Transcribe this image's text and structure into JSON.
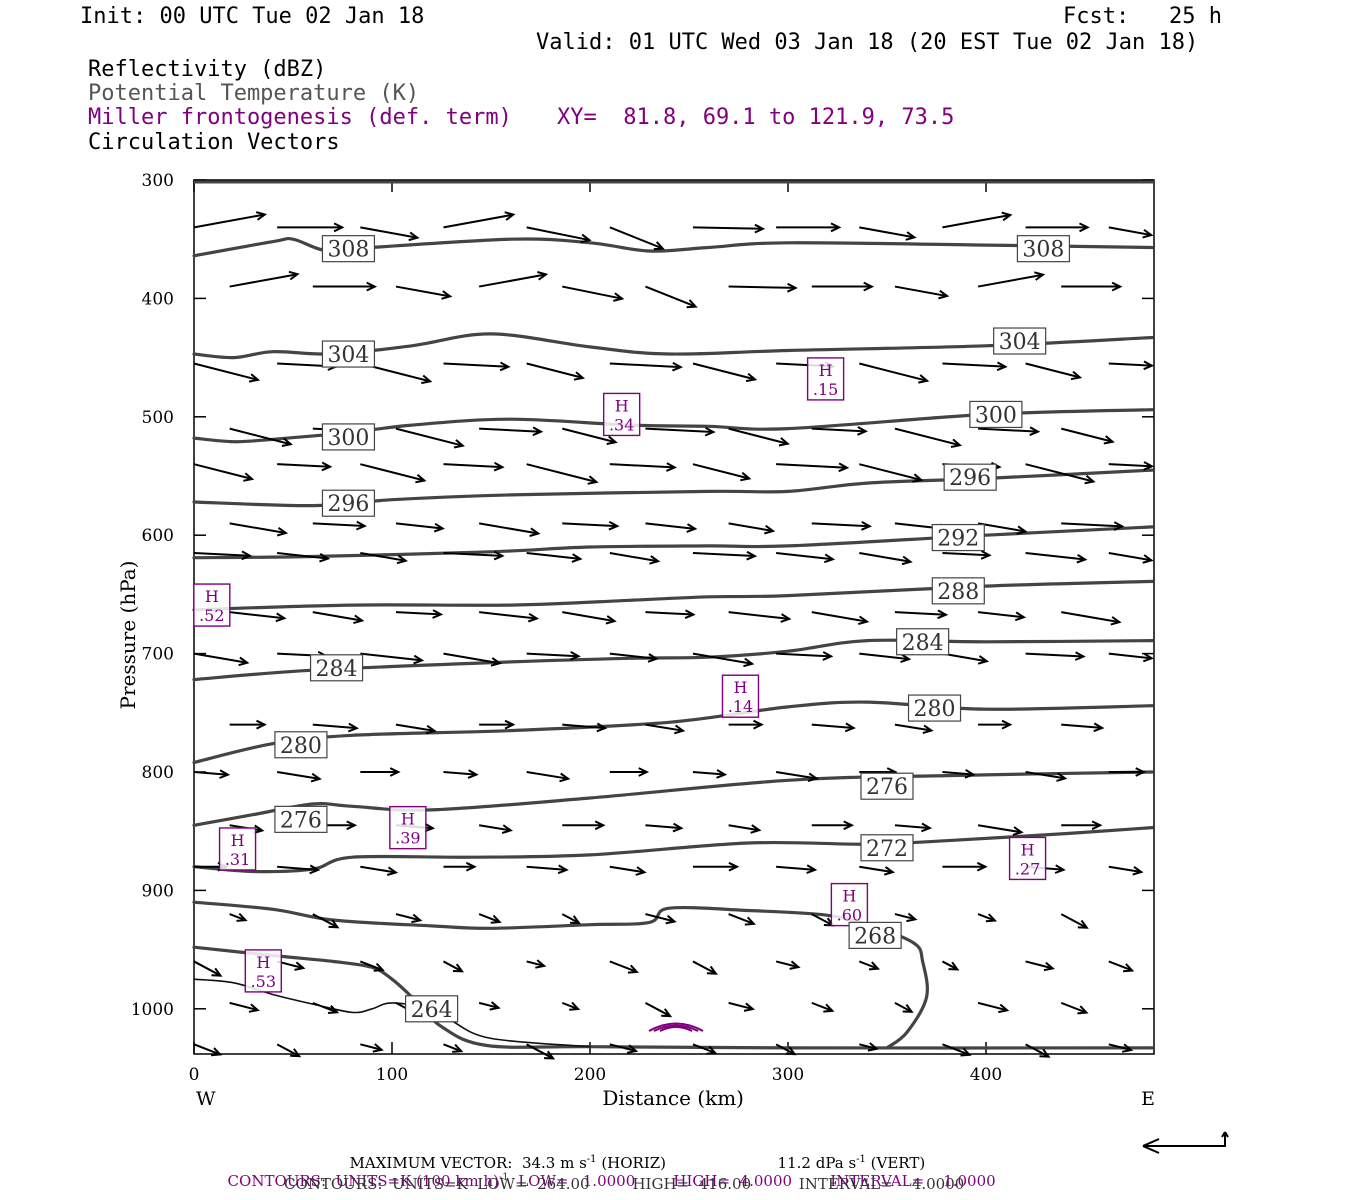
{
  "header": {
    "init": "Init: 00 UTC Tue 02 Jan 18",
    "fcst": "Fcst:   25 h",
    "valid": "Valid: 01 UTC Wed 03 Jan 18 (20 EST Tue 02 Jan 18)"
  },
  "legend": {
    "line1": "Reflectivity (dBZ)",
    "line2": "Potential Temperature (K)",
    "line3": "Miller frontogenesis (def. term)",
    "xy": "XY=  81.8, 69.1 to 121.9, 73.5",
    "line4": "Circulation Vectors"
  },
  "footer": {
    "max_vector_label": "MAXIMUM VECTOR:",
    "horiz_value": "34.3 m s",
    "horiz_exp": "-1",
    "horiz_suffix": " (HORIZ)",
    "vert_value": "11.2 dPa s",
    "vert_exp": "-1",
    "vert_suffix": " (VERT)",
    "contours_purple_a": "CONTOURS:  UNITS=K (100 km h)",
    "contours_purple_exp": "-1",
    "contours_purple_b": "  LOW=   1.0000        HIGH=  4.0000        INTERVAL=    1.0000",
    "contours_gray": "CONTOURS:  UNITS=K  LOW=  264.00         HIGH=  416.00          INTERVAL=    4.0000"
  },
  "colors": {
    "theta": "#444444",
    "fronto": "#800080",
    "vector": "#000000"
  },
  "chart_data": {
    "type": "cross-section",
    "xlabel": "Distance (km)",
    "ylabel": "Pressure (hPa)",
    "x_ticks": [
      0,
      100,
      200,
      300,
      400
    ],
    "y_ticks": [
      300,
      400,
      500,
      600,
      700,
      800,
      900,
      1000
    ],
    "xlim": [
      0,
      484
    ],
    "ylim": [
      1038,
      300
    ],
    "y_scale": "linear-pressure-inverted",
    "x_end_labels": {
      "left": "W",
      "right": "E"
    },
    "theta_contours": [
      {
        "label": "308",
        "points": [
          [
            0,
            364
          ],
          [
            40,
            352
          ],
          [
            50,
            350
          ],
          [
            65,
            359
          ],
          [
            80,
            358
          ],
          [
            160,
            350
          ],
          [
            200,
            353
          ],
          [
            230,
            360
          ],
          [
            260,
            357
          ],
          [
            300,
            353
          ],
          [
            400,
            355
          ],
          [
            484,
            357
          ]
        ],
        "labels_at": [
          [
            78,
            358
          ],
          [
            429,
            358
          ]
        ]
      },
      {
        "label": "304",
        "points": [
          [
            0,
            447
          ],
          [
            20,
            450
          ],
          [
            40,
            445
          ],
          [
            70,
            447
          ],
          [
            110,
            440
          ],
          [
            150,
            430
          ],
          [
            200,
            441
          ],
          [
            240,
            447
          ],
          [
            300,
            444
          ],
          [
            400,
            440
          ],
          [
            484,
            433
          ]
        ],
        "labels_at": [
          [
            78,
            447
          ],
          [
            417,
            436
          ]
        ]
      },
      {
        "label": "300",
        "points": [
          [
            0,
            518
          ],
          [
            20,
            521
          ],
          [
            40,
            519
          ],
          [
            80,
            513
          ],
          [
            110,
            507
          ],
          [
            160,
            502
          ],
          [
            220,
            507
          ],
          [
            260,
            508
          ],
          [
            300,
            510
          ],
          [
            400,
            498
          ],
          [
            484,
            494
          ]
        ],
        "labels_at": [
          [
            78,
            517
          ],
          [
            405,
            498
          ]
        ]
      },
      {
        "label": "296",
        "points": [
          [
            0,
            572
          ],
          [
            60,
            575
          ],
          [
            100,
            570
          ],
          [
            160,
            566
          ],
          [
            260,
            563
          ],
          [
            300,
            563
          ],
          [
            340,
            556
          ],
          [
            400,
            552
          ],
          [
            484,
            545
          ]
        ],
        "labels_at": [
          [
            78,
            573
          ],
          [
            392,
            551
          ]
        ]
      },
      {
        "label": "292",
        "points": [
          [
            0,
            619
          ],
          [
            60,
            618
          ],
          [
            150,
            614
          ],
          [
            200,
            610
          ],
          [
            260,
            609
          ],
          [
            300,
            609
          ],
          [
            400,
            600
          ],
          [
            484,
            593
          ]
        ],
        "labels_at": [
          [
            386,
            602
          ]
        ]
      },
      {
        "label": "288",
        "points": [
          [
            0,
            663
          ],
          [
            80,
            659
          ],
          [
            160,
            659
          ],
          [
            220,
            655
          ],
          [
            260,
            652
          ],
          [
            300,
            651
          ],
          [
            400,
            643
          ],
          [
            484,
            639
          ]
        ],
        "labels_at": [
          [
            386,
            647
          ]
        ]
      },
      {
        "label": "284",
        "points": [
          [
            0,
            722
          ],
          [
            60,
            714
          ],
          [
            160,
            707
          ],
          [
            220,
            704
          ],
          [
            260,
            703
          ],
          [
            300,
            698
          ],
          [
            340,
            689
          ],
          [
            400,
            690
          ],
          [
            484,
            689
          ]
        ],
        "labels_at": [
          [
            72,
            712
          ],
          [
            368,
            690
          ]
        ]
      },
      {
        "label": "280",
        "points": [
          [
            0,
            792
          ],
          [
            40,
            776
          ],
          [
            80,
            769
          ],
          [
            160,
            765
          ],
          [
            240,
            758
          ],
          [
            300,
            745
          ],
          [
            340,
            741
          ],
          [
            400,
            747
          ],
          [
            484,
            744
          ]
        ],
        "labels_at": [
          [
            54,
            777
          ],
          [
            374,
            746
          ]
        ]
      },
      {
        "label": "276",
        "points": [
          [
            0,
            845
          ],
          [
            30,
            836
          ],
          [
            60,
            827
          ],
          [
            80,
            829
          ],
          [
            120,
            832
          ],
          [
            200,
            822
          ],
          [
            300,
            807
          ],
          [
            380,
            803
          ],
          [
            484,
            800
          ]
        ],
        "labels_at": [
          [
            54,
            840
          ],
          [
            350,
            812
          ]
        ]
      },
      {
        "label": "272",
        "points": [
          [
            0,
            880
          ],
          [
            30,
            884
          ],
          [
            60,
            882
          ],
          [
            80,
            872
          ],
          [
            140,
            872
          ],
          [
            200,
            870
          ],
          [
            280,
            860
          ],
          [
            340,
            861
          ],
          [
            380,
            858
          ],
          [
            440,
            852
          ],
          [
            484,
            847
          ]
        ],
        "labels_at": [
          [
            350,
            864
          ]
        ]
      },
      {
        "label": "268",
        "points": [
          [
            0,
            910
          ],
          [
            40,
            916
          ],
          [
            70,
            925
          ],
          [
            120,
            930
          ],
          [
            150,
            932
          ],
          [
            200,
            929
          ],
          [
            230,
            927
          ],
          [
            240,
            915
          ],
          [
            280,
            917
          ],
          [
            320,
            921
          ],
          [
            344,
            931
          ],
          [
            364,
            945
          ],
          [
            368,
            960
          ],
          [
            370,
            990
          ],
          [
            360,
            1020
          ],
          [
            350,
            1033
          ]
        ],
        "labels_at": [
          [
            344,
            938
          ]
        ]
      },
      {
        "label": "264",
        "points": [
          [
            0,
            948
          ],
          [
            40,
            955
          ],
          [
            70,
            960
          ],
          [
            90,
            965
          ],
          [
            100,
            975
          ],
          [
            110,
            990
          ],
          [
            125,
            1015
          ],
          [
            148,
            1031
          ],
          [
            200,
            1032
          ],
          [
            300,
            1033
          ],
          [
            484,
            1033
          ]
        ],
        "labels_at": [
          [
            120,
            1000
          ]
        ]
      },
      {
        "label": "",
        "points": [
          [
            0,
            975
          ],
          [
            20,
            978
          ],
          [
            40,
            988
          ],
          [
            60,
            996
          ],
          [
            80,
            1003
          ],
          [
            90,
            1000
          ],
          [
            100,
            995
          ],
          [
            120,
            1000
          ],
          [
            130,
            1010
          ],
          [
            150,
            1025
          ],
          [
            200,
            1032
          ]
        ],
        "labels_at": []
      }
    ],
    "frontogenesis_maxima": [
      {
        "marker": "H",
        "value": ".52",
        "x": 9,
        "p": 659
      },
      {
        "marker": "H",
        "value": ".34",
        "x": 216,
        "p": 498
      },
      {
        "marker": "H",
        "value": ".15",
        "x": 319,
        "p": 468
      },
      {
        "marker": "H",
        "value": ".14",
        "x": 276,
        "p": 736
      },
      {
        "marker": "H",
        "value": ".31",
        "x": 22,
        "p": 865
      },
      {
        "marker": "H",
        "value": ".39",
        "x": 108,
        "p": 847
      },
      {
        "marker": "H",
        "value": ".27",
        "x": 421,
        "p": 873
      },
      {
        "marker": "H",
        "value": ".60",
        "x": 331,
        "p": 912
      },
      {
        "marker": "H",
        "value": ".53",
        "x": 35,
        "p": 968
      }
    ],
    "max_vector": {
      "horiz": 34.3,
      "vert": 11.2
    },
    "fronto_contours": {
      "units": "K (100 km h)^-1",
      "low": 1.0,
      "high": 4.0,
      "interval": 1.0
    },
    "theta_contour_spec": {
      "units": "K",
      "low": 264.0,
      "high": 416.0,
      "interval": 4.0
    }
  }
}
